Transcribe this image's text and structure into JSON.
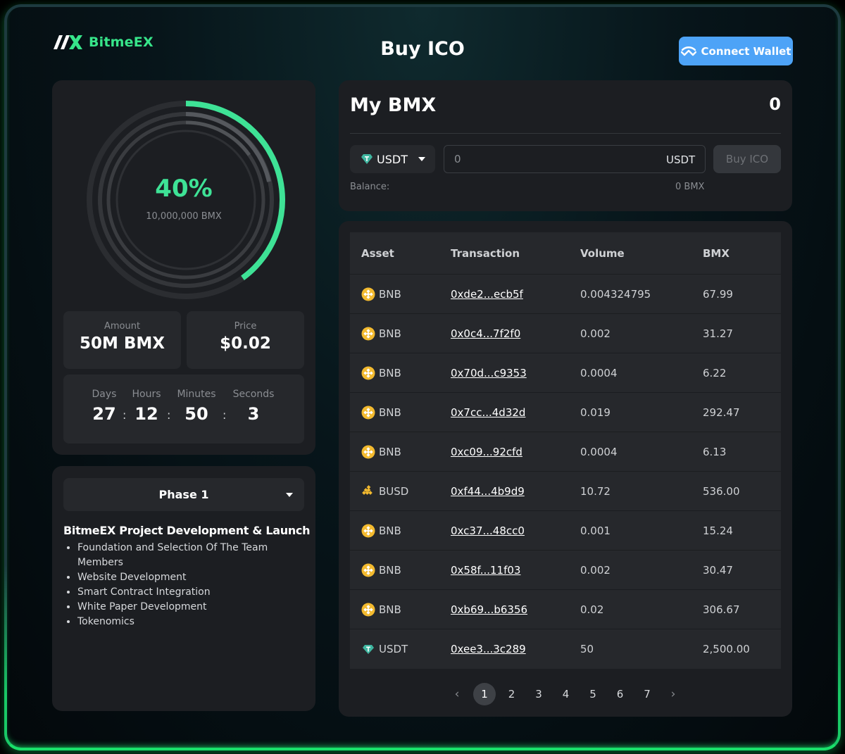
{
  "header": {
    "logo_text": "BitmeEX",
    "title": "Buy ICO",
    "connect_label": "Connect Wallet"
  },
  "progress": {
    "percent_label": "40%",
    "percent_value": 0.4,
    "supply": "10,000,000 BMX"
  },
  "stats": {
    "amount_label": "Amount",
    "amount_value": "50M BMX",
    "price_label": "Price",
    "price_value": "$0.02"
  },
  "countdown": {
    "days_label": "Days",
    "days": "27",
    "hours_label": "Hours",
    "hours": "12",
    "minutes_label": "Minutes",
    "minutes": "50",
    "seconds_label": "Seconds",
    "seconds": "3",
    "separator": ":"
  },
  "phase": {
    "selected": "Phase 1",
    "heading": "BitmeEX Project Development & Launch",
    "items": [
      "Foundation and Selection Of The Team Members",
      "Website Development",
      "Smart Contract Integration",
      "White Paper Development",
      "Tokenomics"
    ]
  },
  "buy": {
    "title": "My BMX",
    "amount": "0",
    "token": "USDT",
    "input_value": "0",
    "input_unit": "USDT",
    "button": "Buy ICO",
    "balance_label": "Balance:",
    "balance_value": "0 BMX"
  },
  "table": {
    "headers": [
      "Asset",
      "Transaction",
      "Volume",
      "BMX"
    ],
    "rows": [
      {
        "asset": "BNB",
        "tx": "0xde2...ecb5f",
        "volume": "0.004324795",
        "bmx": "67.99"
      },
      {
        "asset": "BNB",
        "tx": "0x0c4...7f2f0",
        "volume": "0.002",
        "bmx": "31.27"
      },
      {
        "asset": "BNB",
        "tx": "0x70d...c9353",
        "volume": "0.0004",
        "bmx": "6.22"
      },
      {
        "asset": "BNB",
        "tx": "0x7cc...4d32d",
        "volume": "0.019",
        "bmx": "292.47"
      },
      {
        "asset": "BNB",
        "tx": "0xc09...92cfd",
        "volume": "0.0004",
        "bmx": "6.13"
      },
      {
        "asset": "BUSD",
        "tx": "0xf44...4b9d9",
        "volume": "10.72",
        "bmx": "536.00"
      },
      {
        "asset": "BNB",
        "tx": "0xc37...48cc0",
        "volume": "0.001",
        "bmx": "15.24"
      },
      {
        "asset": "BNB",
        "tx": "0x58f...11f03",
        "volume": "0.002",
        "bmx": "30.47"
      },
      {
        "asset": "BNB",
        "tx": "0xb69...b6356",
        "volume": "0.02",
        "bmx": "306.67"
      },
      {
        "asset": "USDT",
        "tx": "0xee3...3c289",
        "volume": "50",
        "bmx": "2,500.00"
      }
    ]
  },
  "pagination": {
    "prev": "‹",
    "next": "›",
    "pages": [
      "1",
      "2",
      "3",
      "4",
      "5",
      "6",
      "7"
    ],
    "active": "1"
  },
  "colors": {
    "accent_green": "#3ee296",
    "connect_blue": "#4da3f7",
    "bnb": "#f3ba2f",
    "usdt": "#26a17b"
  }
}
